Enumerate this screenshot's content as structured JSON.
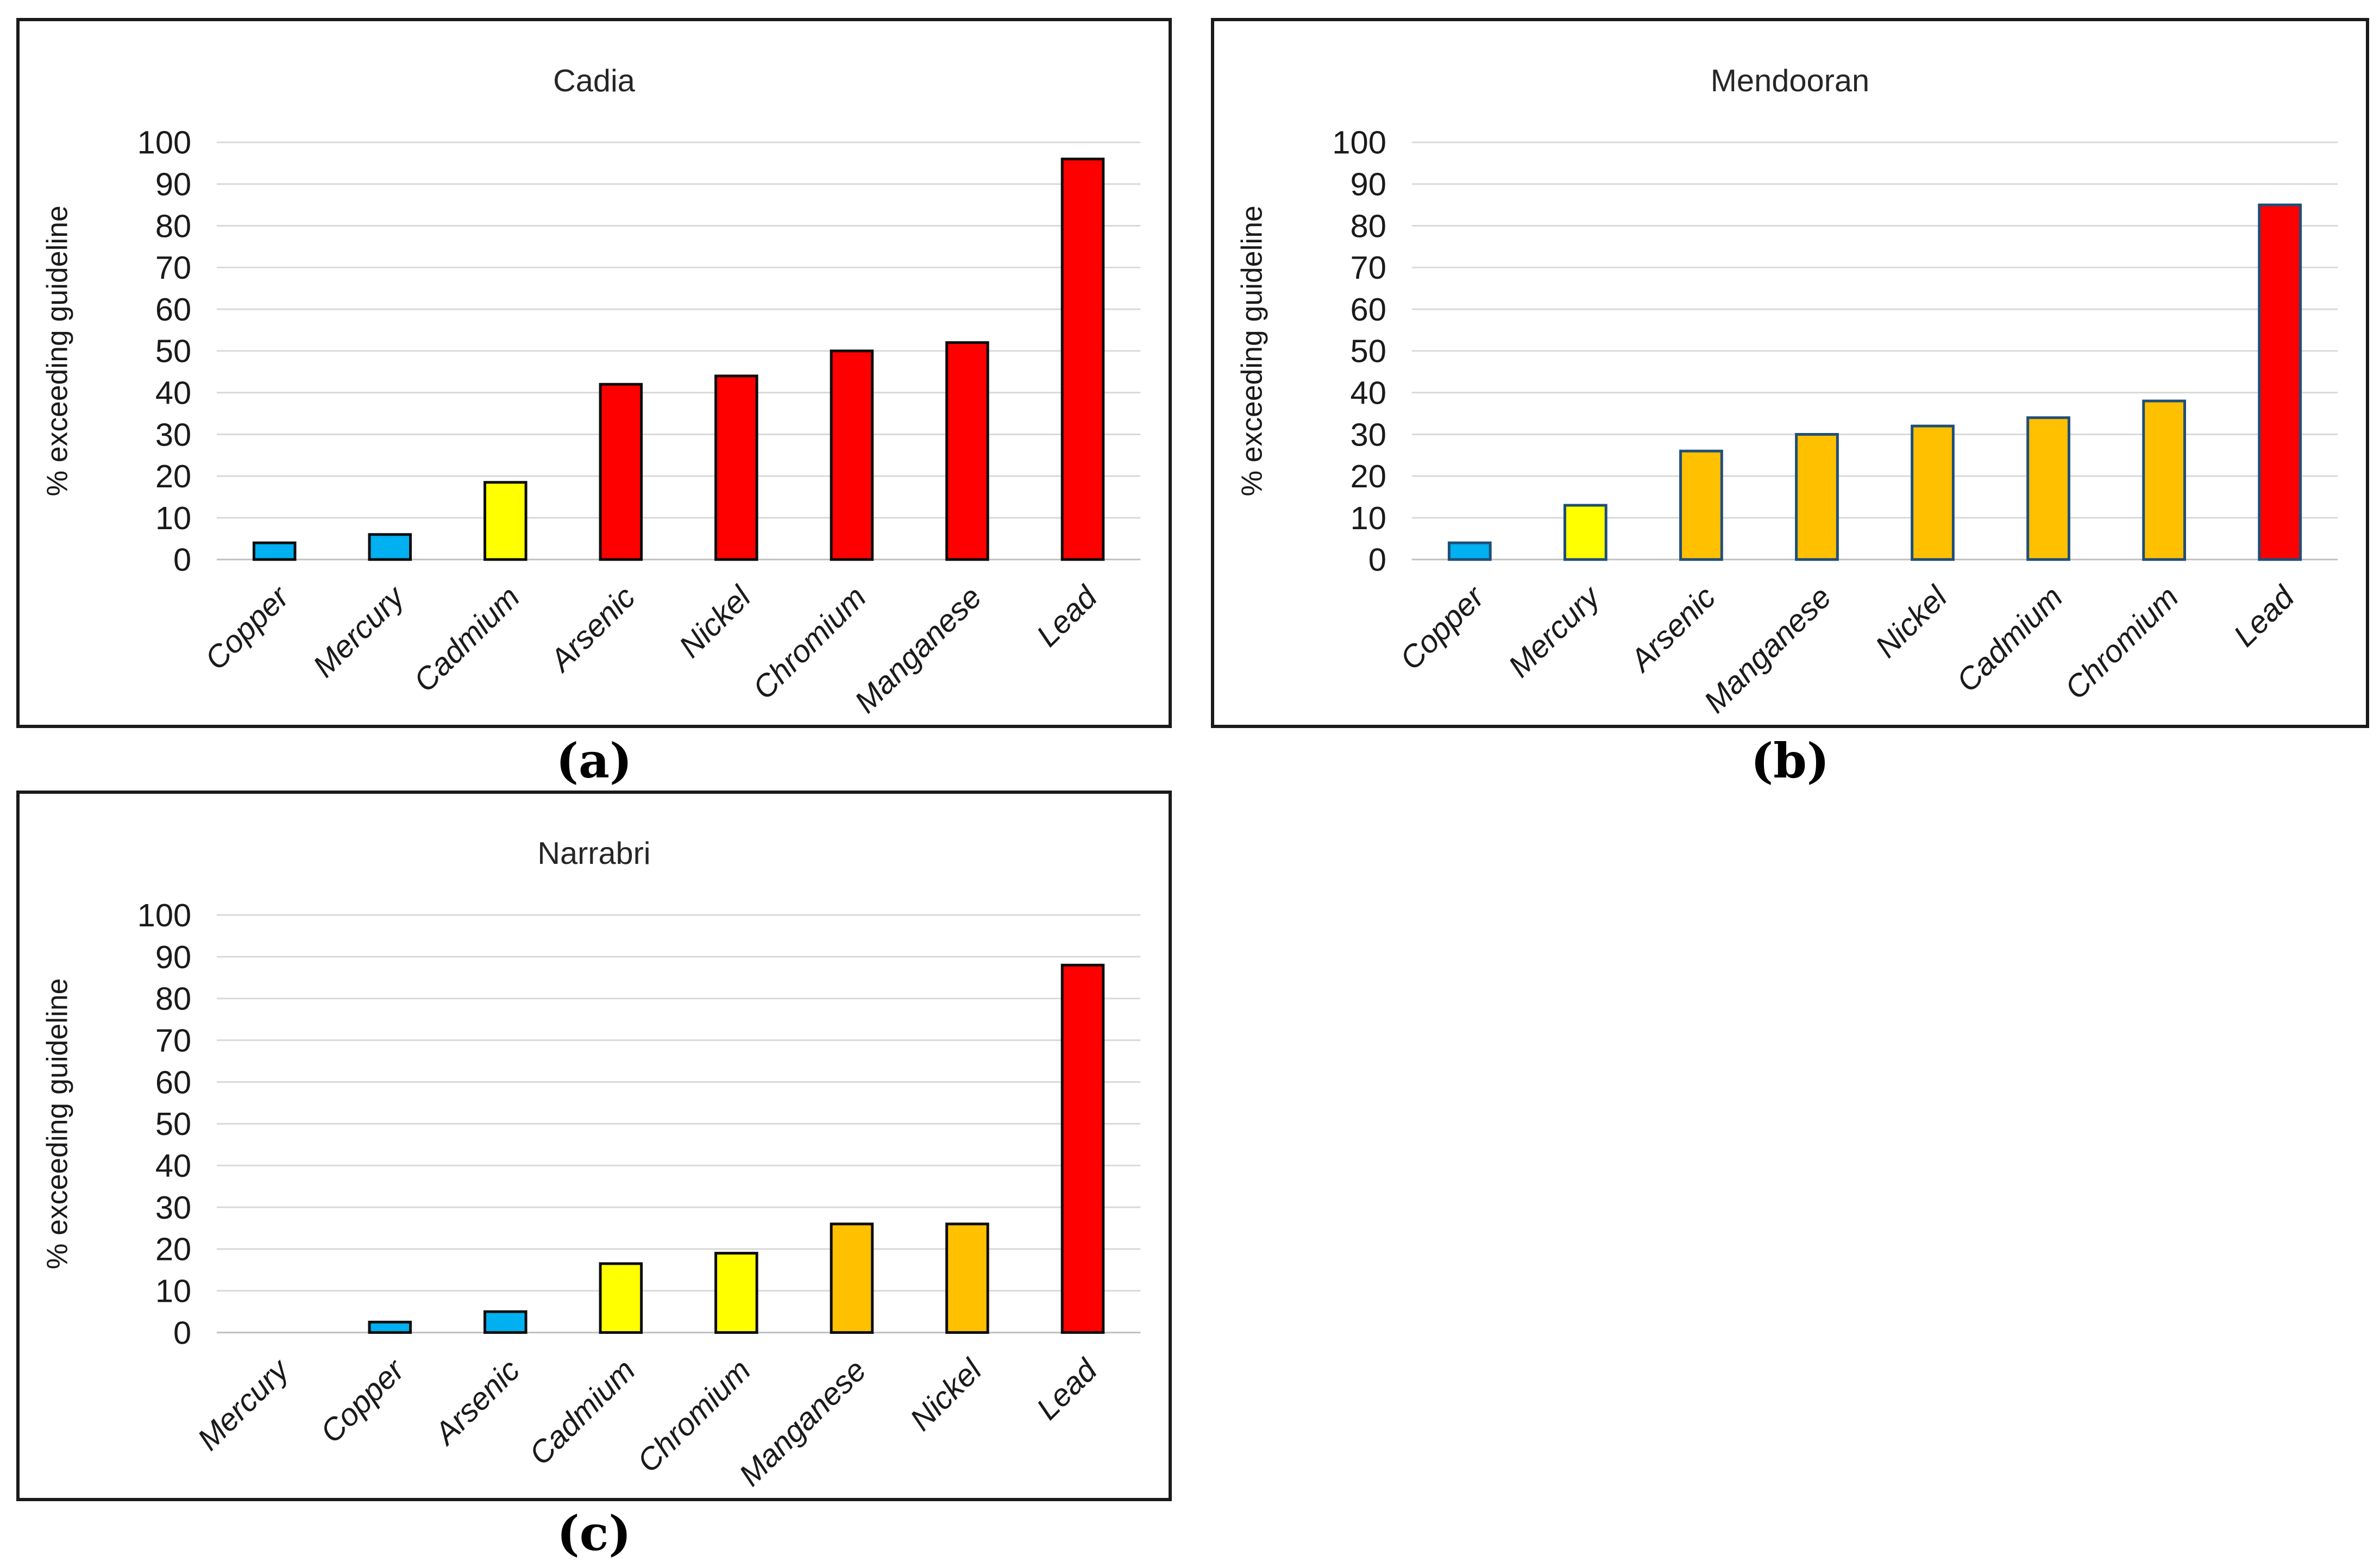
{
  "figure": {
    "captions": {
      "a": "(a)",
      "b": "(b)",
      "c": "(c)"
    }
  },
  "chart_data": [
    {
      "id": "a",
      "type": "bar",
      "title": "Cadia",
      "xlabel": "",
      "ylabel": "% exceeding guideline",
      "ylim": [
        0,
        100
      ],
      "ytick_step": 10,
      "grid": true,
      "legend": "none",
      "categories": [
        "Copper",
        "Mercury",
        "Cadmium",
        "Arsenic",
        "Nickel",
        "Chromium",
        "Manganese",
        "Lead"
      ],
      "values": [
        4,
        6,
        18.5,
        42,
        44,
        50,
        52,
        96
      ],
      "bar_colors": [
        "#00B0F0",
        "#00B0F0",
        "#FFFF00",
        "#FF0000",
        "#FF0000",
        "#FF0000",
        "#FF0000",
        "#FF0000"
      ],
      "bar_border_color": "#0d0d0d",
      "gridline_color": "#D9D9D9",
      "axis_line_color": "#BFBFBF",
      "caption": "(a)"
    },
    {
      "id": "b",
      "type": "bar",
      "title": "Mendooran",
      "xlabel": "",
      "ylabel": "% exceeding guideline",
      "ylim": [
        0,
        100
      ],
      "ytick_step": 10,
      "grid": true,
      "legend": "none",
      "categories": [
        "Copper",
        "Mercury",
        "Arsenic",
        "Manganese",
        "Nickel",
        "Cadmium",
        "Chromium",
        "Lead"
      ],
      "values": [
        4,
        13,
        26,
        30,
        32,
        34,
        38,
        85
      ],
      "bar_colors": [
        "#00B0F0",
        "#FFFF00",
        "#FFC000",
        "#FFC000",
        "#FFC000",
        "#FFC000",
        "#FFC000",
        "#FF0000"
      ],
      "bar_border_color": "#1F4E79",
      "gridline_color": "#D9D9D9",
      "axis_line_color": "#BFBFBF",
      "caption": "(b)"
    },
    {
      "id": "c",
      "type": "bar",
      "title": "Narrabri",
      "xlabel": "",
      "ylabel": "%  exceeding guideline",
      "ylim": [
        0,
        100
      ],
      "ytick_step": 10,
      "grid": true,
      "legend": "none",
      "categories": [
        "Mercury",
        "Copper",
        "Arsenic",
        "Cadmium",
        "Chromium",
        "Manganese",
        "Nickel",
        "Lead"
      ],
      "values": [
        0,
        2.5,
        5,
        16.5,
        19,
        26,
        26,
        88
      ],
      "bar_colors": [
        "#00B0F0",
        "#00B0F0",
        "#00B0F0",
        "#FFFF00",
        "#FFFF00",
        "#FFC000",
        "#FFC000",
        "#FF0000"
      ],
      "bar_border_color": "#0d0d0d",
      "gridline_color": "#D9D9D9",
      "axis_line_color": "#BFBFBF",
      "caption": "(c)"
    }
  ]
}
